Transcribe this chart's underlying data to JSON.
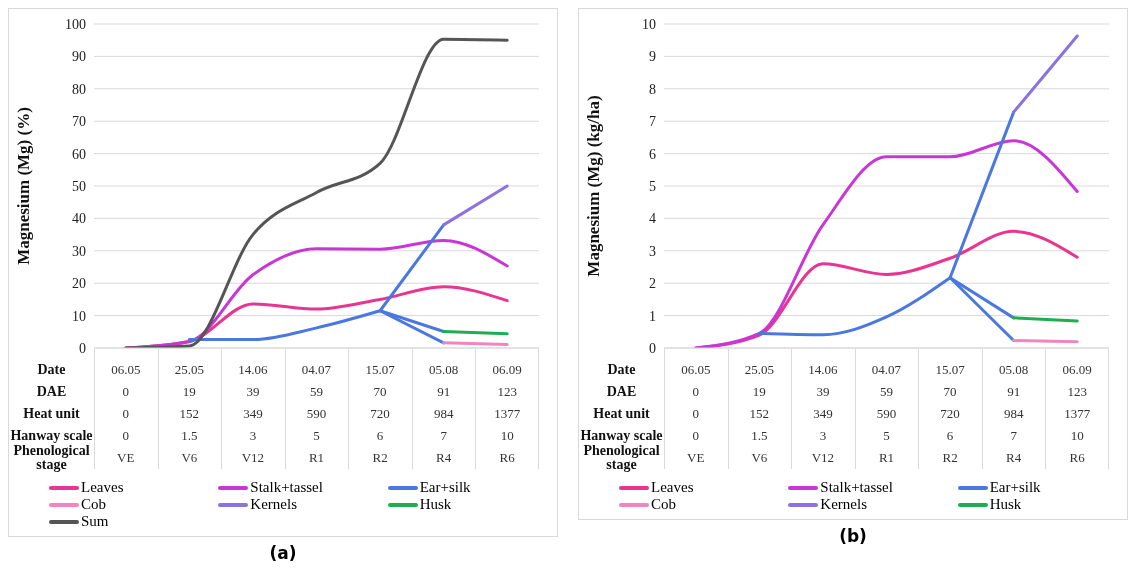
{
  "chart_data": [
    {
      "type": "line",
      "title": "(a)",
      "ylabel": "Magnesium (Mg) (%)",
      "xlabel": "Date",
      "categories": [
        "06.05",
        "25.05",
        "14.06",
        "04.07",
        "15.07",
        "05.08",
        "06.09"
      ],
      "ylim": [
        0,
        100
      ],
      "yticks": [
        0,
        10,
        20,
        30,
        40,
        50,
        60,
        70,
        80,
        90,
        100
      ],
      "grid": "y",
      "legend": "bottom",
      "series": [
        {
          "name": "Leaves",
          "color": "#e8358f",
          "values": [
            0,
            2,
            13.6,
            12,
            15,
            18.9,
            14.6
          ]
        },
        {
          "name": "Stalk+tassel",
          "color": "#c936d6",
          "values": [
            0,
            2,
            22.6,
            30.6,
            30.5,
            33.2,
            25.3
          ]
        },
        {
          "name": "Ear+silk",
          "color": "#4a78e0",
          "values": [
            null,
            2.6,
            2.6,
            6.2,
            11.5,
            null,
            null
          ]
        },
        {
          "color": "#4a78e0",
          "values": [
            null,
            null,
            null,
            null,
            11.5,
            38,
            null
          ]
        },
        {
          "color": "#4a78e0",
          "values": [
            null,
            null,
            null,
            null,
            11.5,
            5.1,
            null
          ]
        },
        {
          "color": "#4a78e0",
          "values": [
            null,
            null,
            null,
            null,
            11.5,
            1.6,
            null
          ]
        },
        {
          "name": "Cob",
          "color": "#ef86bf",
          "values": [
            null,
            null,
            null,
            null,
            null,
            1.6,
            1.1
          ]
        },
        {
          "name": "Kernels",
          "color": "#8c72e0",
          "values": [
            null,
            null,
            null,
            null,
            null,
            38,
            50
          ]
        },
        {
          "name": "Husk",
          "color": "#1fae4f",
          "values": [
            null,
            null,
            null,
            null,
            null,
            5.1,
            4.4
          ]
        },
        {
          "name": "Sum",
          "color": "#555555",
          "values": [
            0,
            0.6,
            35,
            48,
            57,
            95.3,
            95
          ]
        }
      ],
      "annotations": [
        "DAE",
        "0",
        "19",
        "39",
        "59",
        "70",
        "91",
        "123",
        "Heat unit",
        "0",
        "152",
        "349",
        "590",
        "720",
        "984",
        "1377",
        "Hanway scale",
        "0",
        "1.5",
        "3",
        "5",
        "6",
        "7",
        "10",
        "Phenological stage",
        "VE",
        "V6",
        "V12",
        "R1",
        "R2",
        "R4",
        "R6"
      ]
    },
    {
      "type": "line",
      "title": "(b)",
      "ylabel": "Magnesium (Mg) (kg/ha)",
      "xlabel": "Date",
      "categories": [
        "06.05",
        "25.05",
        "14.06",
        "04.07",
        "15.07",
        "05.08",
        "06.09"
      ],
      "ylim": [
        0,
        10
      ],
      "yticks": [
        0,
        1,
        2,
        3,
        4,
        5,
        6,
        7,
        8,
        9,
        10
      ],
      "grid": "y",
      "legend": "bottom",
      "series": [
        {
          "name": "Leaves",
          "color": "#e8358f",
          "values": [
            0,
            0.4,
            2.6,
            2.27,
            2.77,
            3.6,
            2.8
          ]
        },
        {
          "name": "Stalk+tassel",
          "color": "#c936d6",
          "values": [
            0,
            0.45,
            3.8,
            5.9,
            5.9,
            6.4,
            4.83
          ]
        },
        {
          "name": "Ear+silk",
          "color": "#4a78e0",
          "values": [
            null,
            0.45,
            0.41,
            0.96,
            2.17,
            null,
            null
          ]
        },
        {
          "color": "#4a78e0",
          "values": [
            null,
            null,
            null,
            null,
            2.17,
            7.28,
            null
          ]
        },
        {
          "color": "#4a78e0",
          "values": [
            null,
            null,
            null,
            null,
            2.17,
            0.93,
            null
          ]
        },
        {
          "color": "#4a78e0",
          "values": [
            null,
            null,
            null,
            null,
            2.17,
            0.23,
            null
          ]
        },
        {
          "name": "Cob",
          "color": "#ef86bf",
          "values": [
            null,
            null,
            null,
            null,
            null,
            0.23,
            0.19
          ]
        },
        {
          "name": "Kernels",
          "color": "#8c72e0",
          "values": [
            null,
            null,
            null,
            null,
            null,
            7.28,
            9.63
          ]
        },
        {
          "name": "Husk",
          "color": "#1fae4f",
          "values": [
            null,
            null,
            null,
            null,
            null,
            0.93,
            0.83
          ]
        }
      ],
      "annotations": [
        "DAE",
        "0",
        "19",
        "39",
        "59",
        "70",
        "91",
        "123",
        "Heat unit",
        "0",
        "152",
        "349",
        "590",
        "720",
        "984",
        "1377",
        "Hanway scale",
        "0",
        "1.5",
        "3",
        "5",
        "6",
        "7",
        "10",
        "Phenological stage",
        "VE",
        "V6",
        "V12",
        "R1",
        "R2",
        "R4",
        "R6"
      ]
    }
  ]
}
